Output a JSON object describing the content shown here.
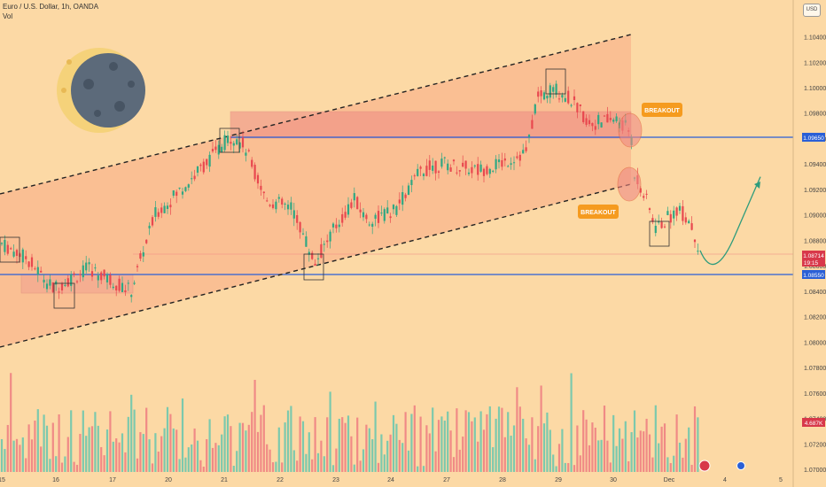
{
  "header": {
    "title": "Euro / U.S. Dollar, 1h, OANDA",
    "indicator": "Vol"
  },
  "currency_button": "USD",
  "chart_data": {
    "type": "candlestick",
    "symbol": "EURUSD",
    "ylim": [
      1.07,
      1.1055
    ],
    "y_ticks": [
      "1.10400",
      "1.10200",
      "1.10000",
      "1.09800",
      "1.09600",
      "1.09400",
      "1.09200",
      "1.09000",
      "1.08800",
      "1.08600",
      "1.08400",
      "1.08200",
      "1.08000",
      "1.07800",
      "1.07600",
      "1.07400",
      "1.07200",
      "1.07000"
    ],
    "x_ticks": [
      "15",
      "16",
      "17",
      "20",
      "21",
      "22",
      "23",
      "24",
      "27",
      "28",
      "29",
      "30",
      "Dec",
      "4",
      "5"
    ],
    "price_tags": {
      "upper_level": "1.09650",
      "current_price": "1.08714",
      "countdown": "19:15",
      "lower_level": "1.08550",
      "volume": "4.687K"
    },
    "levels": [
      1.0965,
      1.0855
    ],
    "annotations": [
      "BREAKOUT",
      "BREAKOUT"
    ],
    "price_path": [
      [
        0,
        1.0878
      ],
      [
        30,
        1.0866
      ],
      [
        60,
        1.0842
      ],
      [
        100,
        1.0858
      ],
      [
        148,
        1.084
      ],
      [
        160,
        1.0868
      ],
      [
        175,
        1.09
      ],
      [
        210,
        1.0924
      ],
      [
        245,
        1.095
      ],
      [
        260,
        1.0962
      ],
      [
        275,
        1.0955
      ],
      [
        290,
        1.093
      ],
      [
        300,
        1.0912
      ],
      [
        330,
        1.0905
      ],
      [
        345,
        1.088
      ],
      [
        355,
        1.0862
      ],
      [
        375,
        1.0887
      ],
      [
        400,
        1.0912
      ],
      [
        415,
        1.0895
      ],
      [
        445,
        1.0903
      ],
      [
        475,
        1.0935
      ],
      [
        500,
        1.094
      ],
      [
        540,
        1.0935
      ],
      [
        570,
        1.0942
      ],
      [
        595,
        1.095
      ],
      [
        605,
        1.099
      ],
      [
        625,
        1.1
      ],
      [
        645,
        1.099
      ],
      [
        665,
        1.0972
      ],
      [
        695,
        1.0975
      ],
      [
        712,
        1.0965
      ],
      [
        715,
        1.0935
      ],
      [
        730,
        1.091
      ],
      [
        740,
        1.089
      ],
      [
        750,
        1.0895
      ],
      [
        765,
        1.0905
      ],
      [
        778,
        1.0895
      ],
      [
        790,
        1.0872
      ]
    ],
    "projection": [
      [
        790,
        1.0872
      ],
      [
        806,
        1.0855
      ],
      [
        830,
        1.0885
      ],
      [
        858,
        1.093
      ]
    ]
  }
}
